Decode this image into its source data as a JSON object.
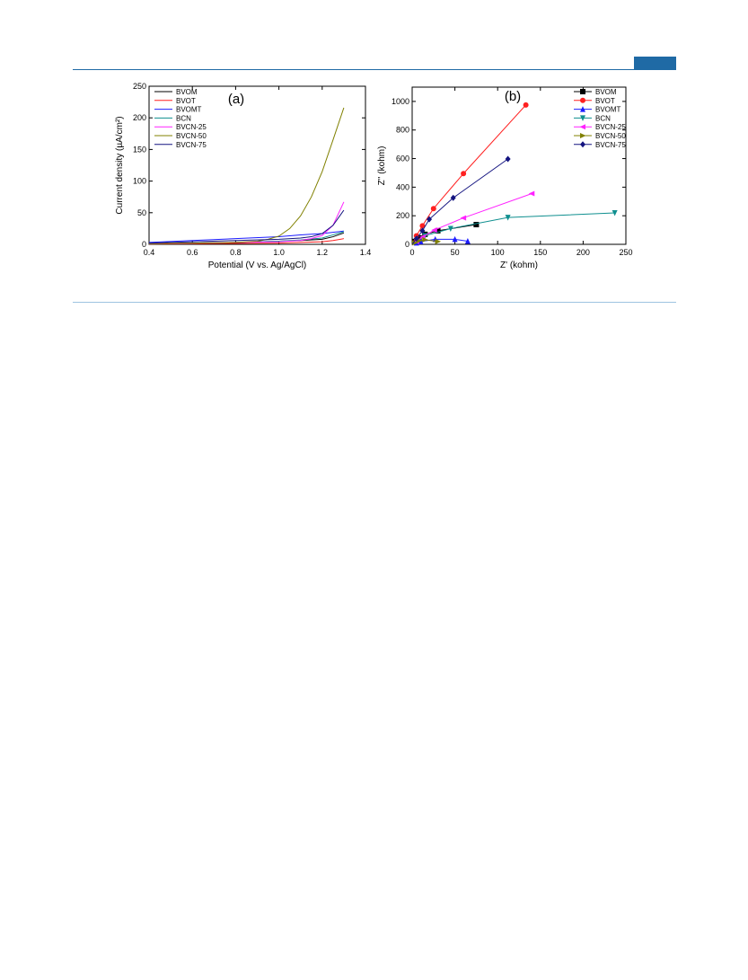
{
  "colors": {
    "header_accent": "#1f6aa5",
    "footer_rule": "#9ec3e0",
    "BVOM": "#000000",
    "BVOT": "#ff2020",
    "BVOMT": "#1c1cff",
    "BCN": "#0f8f8f",
    "BVCN-25": "#ff22ff",
    "BVCN-50": "#808000",
    "BVCN-75": "#141480"
  },
  "chart_data": [
    {
      "panel": "(a)",
      "type": "line",
      "xlabel": "Potential (V vs. Ag/AgCl)",
      "ylabel": "Current density (µA/cm²)",
      "xlim": [
        0.4,
        1.4
      ],
      "ylim": [
        0,
        250
      ],
      "xticks": [
        "0.4",
        "0.6",
        "0.8",
        "1.0",
        "1.2",
        "1.4"
      ],
      "yticks": [
        "0",
        "50",
        "100",
        "150",
        "200",
        "250"
      ],
      "legend_position": "top-left",
      "series": [
        {
          "name": "BVOM",
          "x": [
            0.4,
            0.6,
            0.8,
            1.0,
            1.1,
            1.2,
            1.25,
            1.3
          ],
          "y": [
            1,
            2,
            3,
            5,
            6,
            8,
            12,
            18
          ]
        },
        {
          "name": "BVOT",
          "x": [
            0.4,
            0.6,
            0.8,
            1.0,
            1.1,
            1.2,
            1.25,
            1.3
          ],
          "y": [
            0.5,
            1,
            1.5,
            2,
            3,
            4,
            6,
            9
          ]
        },
        {
          "name": "BVOMT",
          "x": [
            0.4,
            0.6,
            0.8,
            1.0,
            1.1,
            1.2,
            1.25,
            1.3
          ],
          "y": [
            3,
            6,
            9,
            12,
            15,
            17,
            19,
            21
          ]
        },
        {
          "name": "BCN",
          "x": [
            0.4,
            0.6,
            0.8,
            1.0,
            1.1,
            1.2,
            1.25,
            1.3
          ],
          "y": [
            1,
            2,
            3,
            5,
            7,
            10,
            15,
            20
          ]
        },
        {
          "name": "BVCN-25",
          "x": [
            0.4,
            0.6,
            0.8,
            1.0,
            1.1,
            1.15,
            1.2,
            1.25,
            1.3
          ],
          "y": [
            1,
            2,
            3,
            4,
            6,
            9,
            14,
            30,
            67
          ]
        },
        {
          "name": "BVCN-50",
          "x": [
            0.4,
            0.6,
            0.8,
            0.9,
            0.95,
            1.0,
            1.05,
            1.1,
            1.15,
            1.2,
            1.25,
            1.3
          ],
          "y": [
            1,
            2,
            3,
            5,
            8,
            13,
            25,
            45,
            75,
            115,
            165,
            216
          ]
        },
        {
          "name": "BVCN-75",
          "x": [
            0.4,
            0.6,
            0.8,
            1.0,
            1.1,
            1.15,
            1.2,
            1.25,
            1.3
          ],
          "y": [
            2,
            4,
            6,
            8,
            10,
            12,
            17,
            30,
            54
          ]
        }
      ]
    },
    {
      "panel": "(b)",
      "type": "scatter",
      "xlabel": "Z' (kohm)",
      "ylabel": "Z'' (kohm)",
      "xlim": [
        0,
        250
      ],
      "ylim": [
        0,
        1100
      ],
      "xticks": [
        "0",
        "50",
        "100",
        "150",
        "200",
        "250"
      ],
      "yticks": [
        "0",
        "200",
        "400",
        "600",
        "800",
        "1000"
      ],
      "legend_position": "top-right",
      "series": [
        {
          "name": "BVOM",
          "marker": "square",
          "x": [
            0,
            3,
            8,
            15,
            30,
            75
          ],
          "y": [
            0,
            20,
            45,
            70,
            95,
            138
          ]
        },
        {
          "name": "BVOT",
          "marker": "circle",
          "x": [
            0,
            5,
            12,
            25,
            60,
            133
          ],
          "y": [
            0,
            60,
            130,
            250,
            495,
            975
          ]
        },
        {
          "name": "BVOMT",
          "marker": "triangle-up",
          "x": [
            0,
            5,
            10,
            27,
            50,
            65
          ],
          "y": [
            0,
            10,
            20,
            35,
            35,
            22
          ]
        },
        {
          "name": "BCN",
          "marker": "triangle-down",
          "x": [
            0,
            5,
            15,
            45,
            112,
            237
          ],
          "y": [
            0,
            25,
            60,
            110,
            188,
            220
          ]
        },
        {
          "name": "BVCN-25",
          "marker": "triangle-left",
          "x": [
            0,
            5,
            12,
            26,
            60,
            140
          ],
          "y": [
            0,
            20,
            50,
            100,
            185,
            355
          ]
        },
        {
          "name": "BVCN-50",
          "marker": "triangle-right",
          "x": [
            0,
            3,
            8,
            15,
            30
          ],
          "y": [
            0,
            10,
            25,
            32,
            20
          ]
        },
        {
          "name": "BVCN-75",
          "marker": "diamond",
          "x": [
            0,
            5,
            12,
            20,
            48,
            112
          ],
          "y": [
            0,
            40,
            95,
            175,
            325,
            597
          ]
        }
      ]
    }
  ]
}
